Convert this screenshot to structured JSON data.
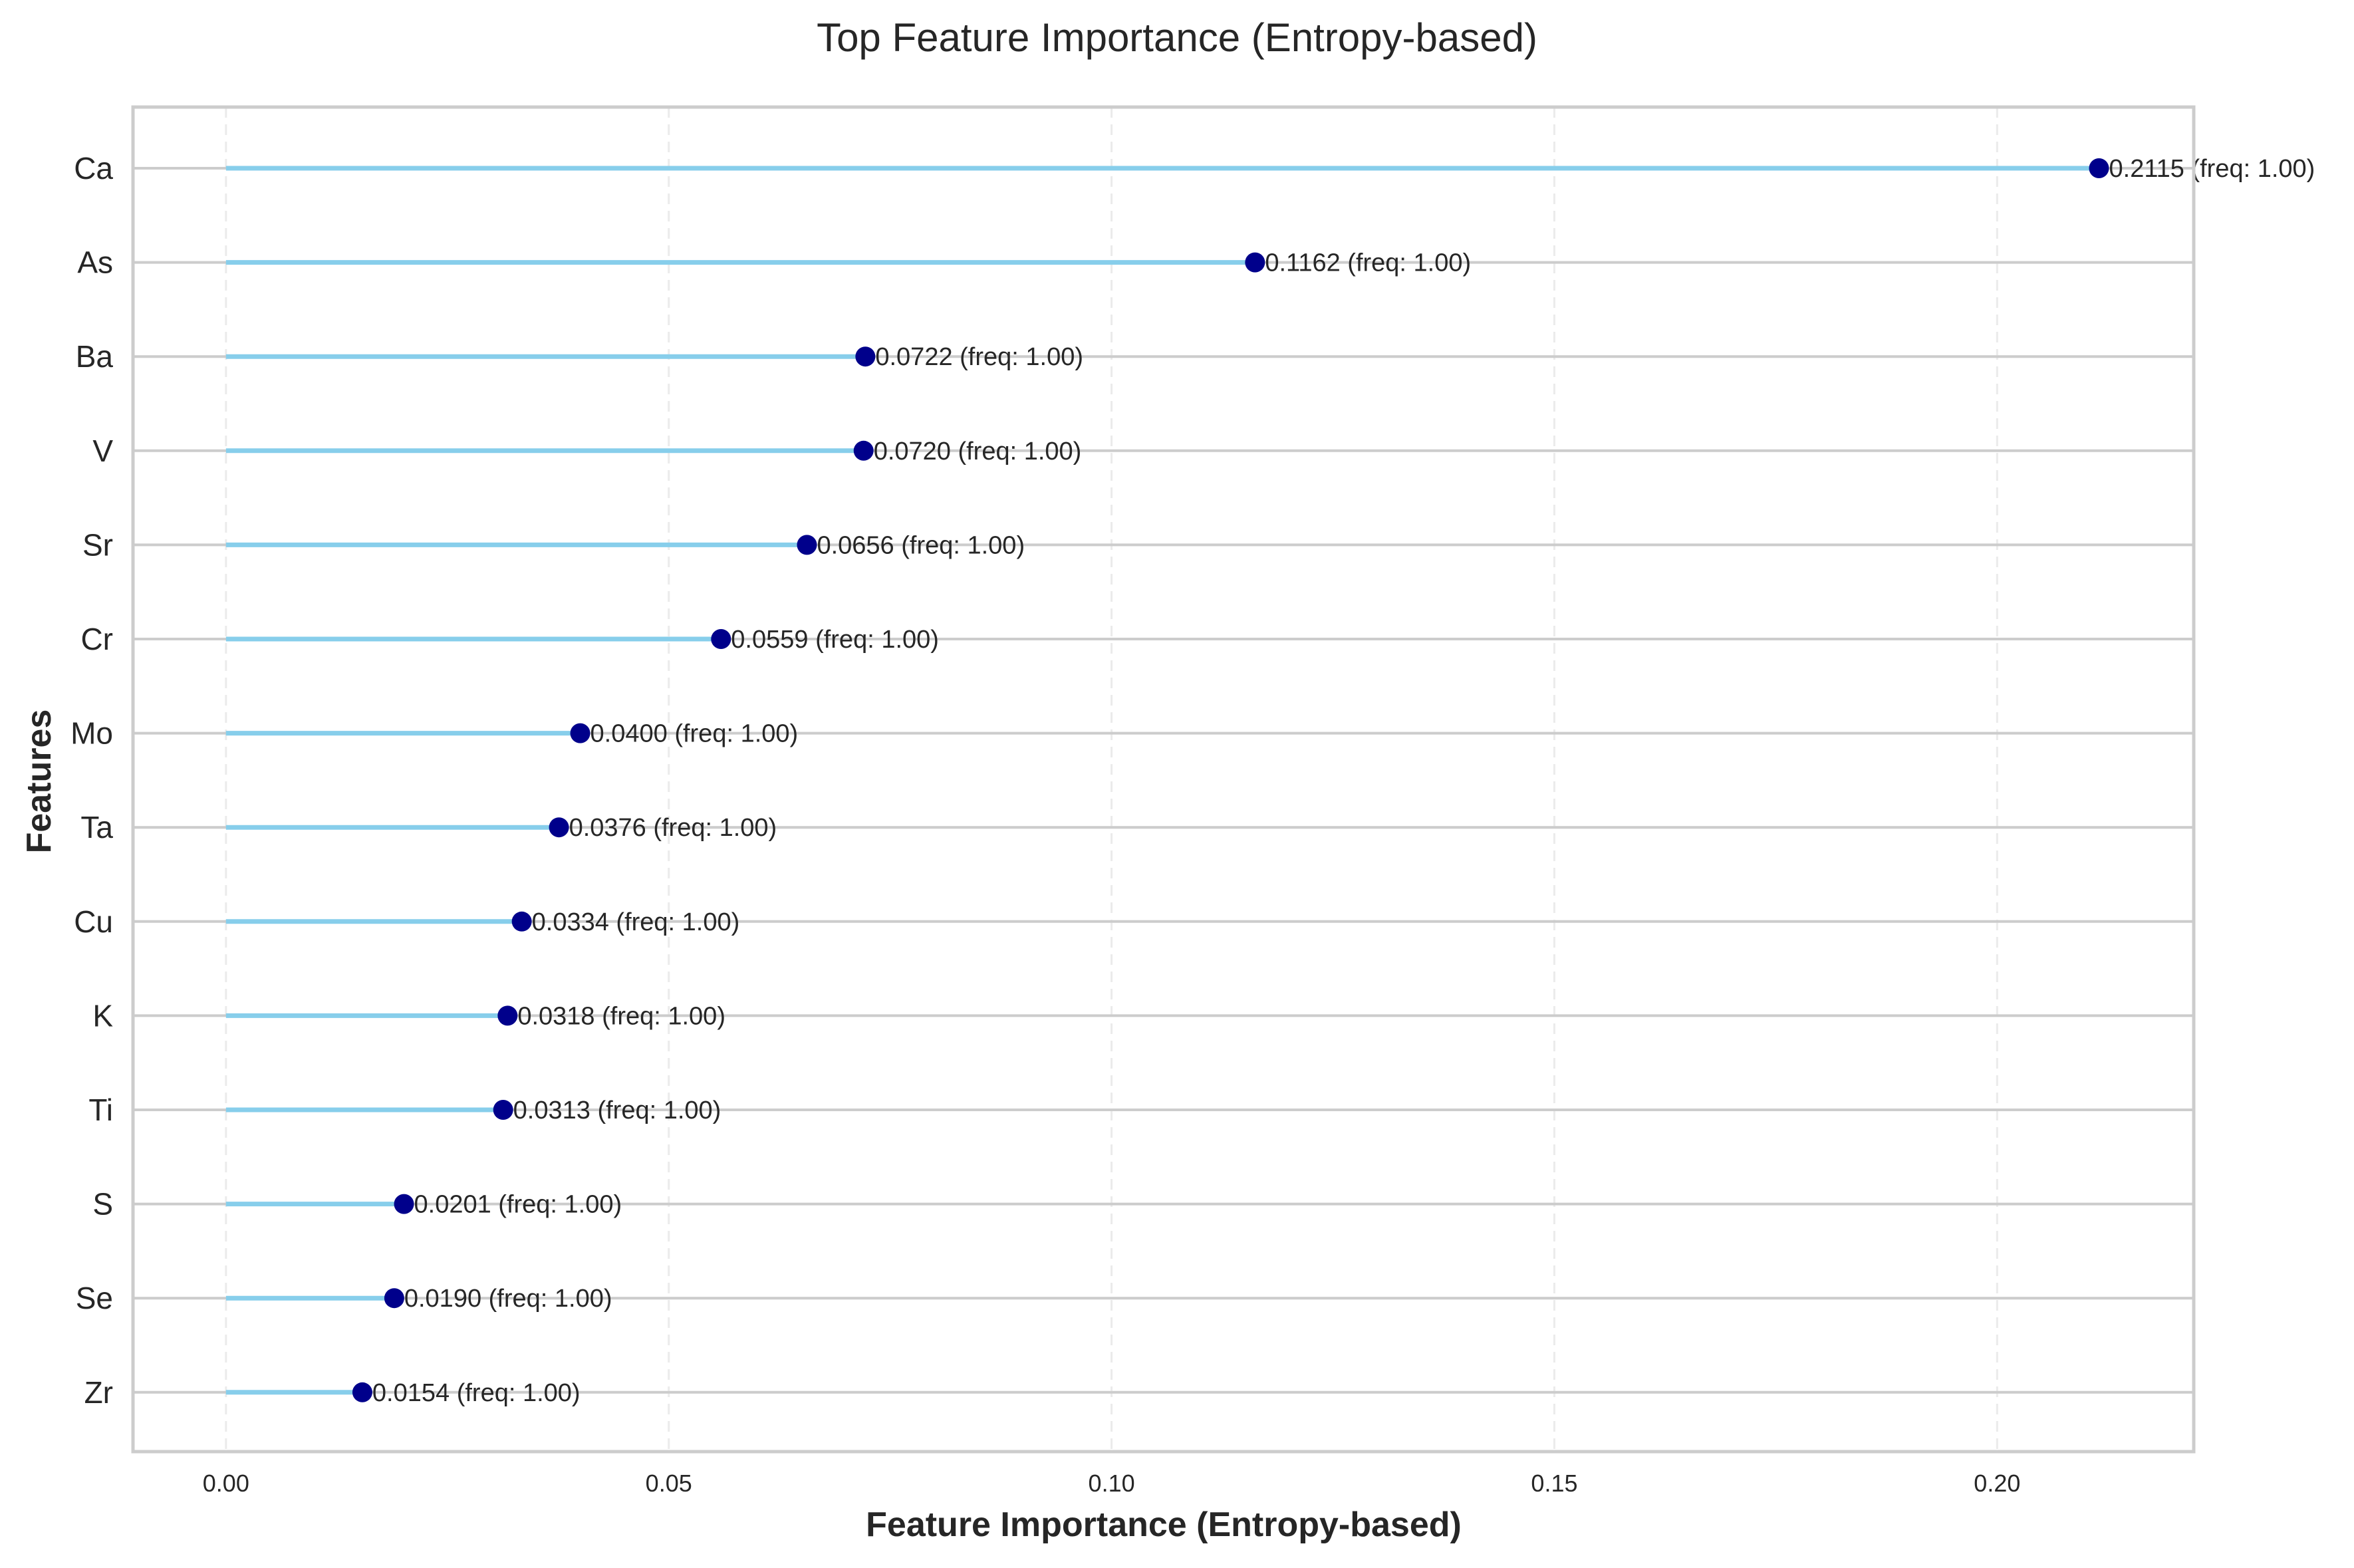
{
  "chart_data": {
    "type": "lollipop",
    "title": "Top Feature Importance (Entropy-based)",
    "xlabel": "Feature Importance (Entropy-based)",
    "ylabel": "Features",
    "xlim": [
      -0.0105,
      0.2222
    ],
    "xticks": [
      0.0,
      0.05,
      0.1,
      0.15,
      0.2
    ],
    "xtick_labels": [
      "0.00",
      "0.05",
      "0.10",
      "0.15",
      "0.20"
    ],
    "grid": "x dashed, y solid",
    "categories": [
      "Ca",
      "As",
      "Ba",
      "V",
      "Sr",
      "Cr",
      "Mo",
      "Ta",
      "Cu",
      "K",
      "Ti",
      "S",
      "Se",
      "Zr"
    ],
    "values": [
      0.2115,
      0.1162,
      0.0722,
      0.072,
      0.0656,
      0.0559,
      0.04,
      0.0376,
      0.0334,
      0.0318,
      0.0313,
      0.0201,
      0.019,
      0.0154
    ],
    "frequencies": [
      1.0,
      1.0,
      1.0,
      1.0,
      1.0,
      1.0,
      1.0,
      1.0,
      1.0,
      1.0,
      1.0,
      1.0,
      1.0,
      1.0
    ],
    "value_labels": [
      "0.2115 (freq: 1.00)",
      "0.1162 (freq: 1.00)",
      "0.0722 (freq: 1.00)",
      "0.0720 (freq: 1.00)",
      "0.0656 (freq: 1.00)",
      "0.0559 (freq: 1.00)",
      "0.0400 (freq: 1.00)",
      "0.0376 (freq: 1.00)",
      "0.0334 (freq: 1.00)",
      "0.0318 (freq: 1.00)",
      "0.0313 (freq: 1.00)",
      "0.0201 (freq: 1.00)",
      "0.0190 (freq: 1.00)",
      "0.0154 (freq: 1.00)"
    ],
    "colors": {
      "stem": "#87ceeb",
      "marker": "#00008b",
      "grid": "#cccccc",
      "frame": "#cccccc",
      "text": "#262626"
    }
  }
}
